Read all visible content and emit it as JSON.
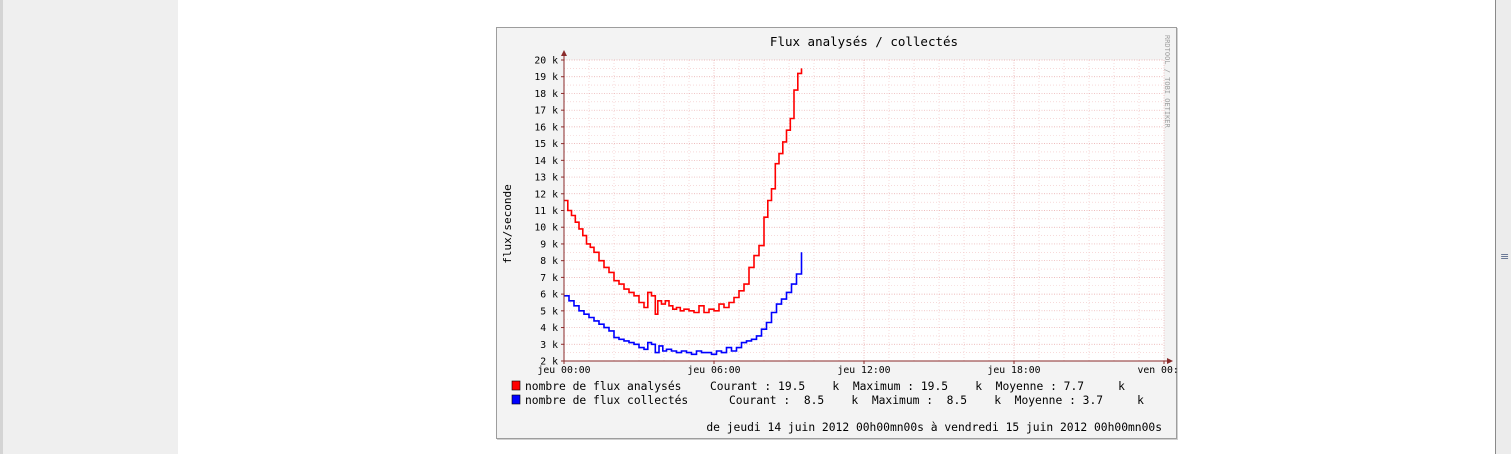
{
  "page": {
    "scroll_grip": "≡"
  },
  "chart_data": {
    "type": "line",
    "title": "Flux analysés / collectés",
    "ylabel": "flux/seconde",
    "watermark": "RRDTOOL / TOBI OETIKER",
    "ylim": [
      2,
      20
    ],
    "yticks": [
      2,
      3,
      4,
      5,
      6,
      7,
      8,
      9,
      10,
      11,
      12,
      13,
      14,
      15,
      16,
      17,
      18,
      19,
      20
    ],
    "y_unit": "k",
    "xlim": [
      0,
      24
    ],
    "x_unit": "hours",
    "xticks": [
      0,
      6,
      12,
      18,
      24
    ],
    "xtick_labels": [
      "jeu 00:00",
      "jeu 06:00",
      "jeu 12:00",
      "jeu 18:00",
      "ven 00:00"
    ],
    "grid": true,
    "series": [
      {
        "name": "nombre de flux analysés",
        "color": "#ff0000",
        "stats": "Courant : 19.5    k  Maximum : 19.5    k  Moyenne : 7.7     k",
        "x": [
          0,
          0.15,
          0.3,
          0.45,
          0.6,
          0.75,
          0.9,
          1.05,
          1.2,
          1.4,
          1.6,
          1.8,
          2.0,
          2.2,
          2.4,
          2.6,
          2.8,
          3.0,
          3.2,
          3.35,
          3.5,
          3.65,
          3.75,
          3.9,
          4.05,
          4.2,
          4.35,
          4.5,
          4.65,
          4.8,
          5.0,
          5.2,
          5.4,
          5.6,
          5.8,
          6.0,
          6.2,
          6.4,
          6.6,
          6.8,
          7.0,
          7.2,
          7.4,
          7.6,
          7.8,
          8.0,
          8.15,
          8.3,
          8.45,
          8.6,
          8.75,
          8.9,
          9.05,
          9.2,
          9.35,
          9.5
        ],
        "y": [
          11.6,
          11.0,
          10.7,
          10.3,
          9.9,
          9.5,
          9.0,
          8.8,
          8.5,
          8.0,
          7.6,
          7.3,
          6.8,
          6.6,
          6.3,
          6.1,
          5.9,
          5.5,
          5.2,
          6.1,
          5.9,
          4.8,
          5.6,
          5.4,
          5.6,
          5.3,
          5.1,
          5.2,
          5.0,
          5.1,
          5.0,
          4.9,
          5.3,
          4.9,
          5.1,
          5.0,
          5.4,
          5.2,
          5.5,
          5.8,
          6.2,
          6.6,
          7.6,
          8.3,
          8.9,
          10.6,
          11.6,
          12.3,
          13.8,
          14.4,
          15.1,
          15.8,
          16.5,
          18.2,
          19.2,
          19.5
        ]
      },
      {
        "name": "nombre de flux collectés",
        "color": "#0000ff",
        "stats": "Courant :  8.5    k  Maximum :  8.5    k  Moyenne : 3.7     k",
        "x": [
          0,
          0.2,
          0.4,
          0.6,
          0.8,
          1.0,
          1.2,
          1.4,
          1.6,
          1.8,
          2.0,
          2.2,
          2.4,
          2.6,
          2.8,
          3.0,
          3.2,
          3.35,
          3.5,
          3.65,
          3.8,
          3.95,
          4.1,
          4.3,
          4.5,
          4.7,
          4.9,
          5.1,
          5.3,
          5.5,
          5.7,
          5.9,
          6.1,
          6.3,
          6.5,
          6.7,
          6.9,
          7.1,
          7.3,
          7.5,
          7.7,
          7.9,
          8.1,
          8.3,
          8.5,
          8.7,
          8.9,
          9.1,
          9.3,
          9.5
        ],
        "y": [
          5.9,
          5.6,
          5.3,
          5.0,
          4.8,
          4.6,
          4.4,
          4.2,
          4.0,
          3.8,
          3.4,
          3.3,
          3.2,
          3.1,
          3.0,
          2.8,
          2.7,
          3.1,
          3.0,
          2.5,
          2.9,
          2.6,
          2.7,
          2.6,
          2.5,
          2.6,
          2.5,
          2.4,
          2.6,
          2.5,
          2.5,
          2.4,
          2.6,
          2.5,
          2.8,
          2.6,
          2.8,
          3.1,
          3.2,
          3.3,
          3.5,
          3.9,
          4.3,
          4.9,
          5.4,
          5.7,
          6.1,
          6.6,
          7.2,
          8.5
        ]
      }
    ],
    "footer": "de jeudi 14 juin 2012 00h00mn00s à vendredi 15 juin 2012 00h00mn00s"
  }
}
